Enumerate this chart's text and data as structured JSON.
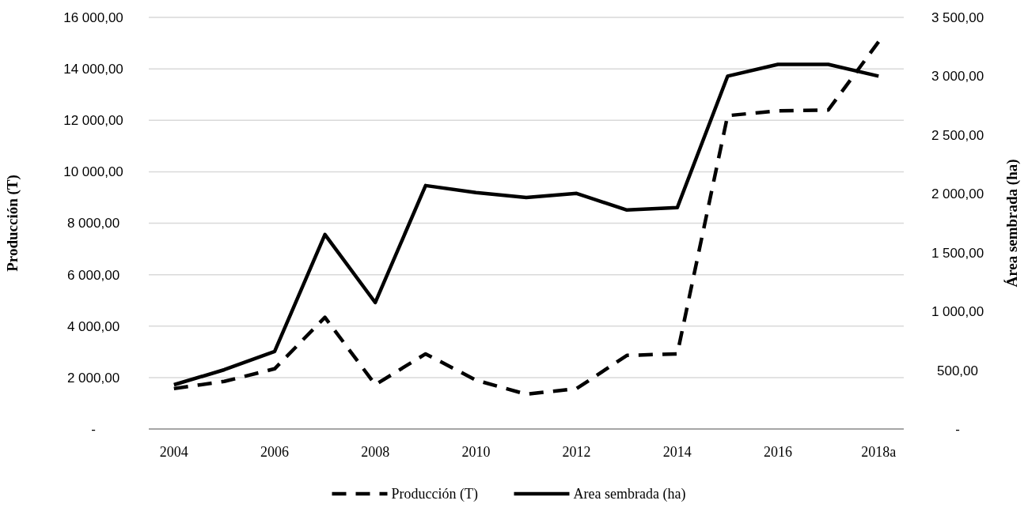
{
  "chart_data": {
    "type": "line",
    "categories": [
      "2004",
      null,
      "2006",
      null,
      "2008",
      null,
      "2010",
      null,
      "2012",
      null,
      "2014",
      null,
      "2016",
      null,
      "2018a"
    ],
    "ylabel": "Producción (T)",
    "y2label": "Área sembrada (ha)",
    "ylim": [
      0,
      16000
    ],
    "yticks": [
      {
        "value": 0,
        "label": "-"
      },
      {
        "value": 2000,
        "label": "2 000,00"
      },
      {
        "value": 4000,
        "label": "4 000,00"
      },
      {
        "value": 6000,
        "label": "6 000,00"
      },
      {
        "value": 8000,
        "label": "8 000,00"
      },
      {
        "value": 10000,
        "label": "10 000,00"
      },
      {
        "value": 12000,
        "label": "12 000,00"
      },
      {
        "value": 14000,
        "label": "14 000,00"
      },
      {
        "value": 16000,
        "label": "16 000,00"
      }
    ],
    "y2lim": [
      0,
      3500
    ],
    "y2ticks": [
      {
        "value": 0,
        "label": "-"
      },
      {
        "value": 500,
        "label": "500,00"
      },
      {
        "value": 1000,
        "label": "1 000,00"
      },
      {
        "value": 1500,
        "label": "1 500,00"
      },
      {
        "value": 2000,
        "label": "2 000,00"
      },
      {
        "value": 2500,
        "label": "2 500,00"
      },
      {
        "value": 3000,
        "label": "3 000,00"
      },
      {
        "value": 3500,
        "label": "3 500,00"
      }
    ],
    "grid": "y",
    "legend": "bottom",
    "marker": "none",
    "series": [
      {
        "name": "Producción (T)",
        "color": "#000000",
        "line_style": "dashed",
        "values": [
          1570,
          1850,
          2340,
          4340,
          1720,
          2920,
          1900,
          1350,
          1570,
          2860,
          2920,
          12180,
          12370,
          12400,
          15050
        ]
      },
      {
        "name": "Area sembrada (ha)",
        "color": "#000000",
        "line_style": "solid",
        "axis": "y2",
        "values": [
          376,
          504,
          659,
          1653,
          1075,
          2070,
          2010,
          1969,
          2003,
          1862,
          1882,
          3000,
          3100,
          3100,
          3000
        ]
      }
    ]
  }
}
